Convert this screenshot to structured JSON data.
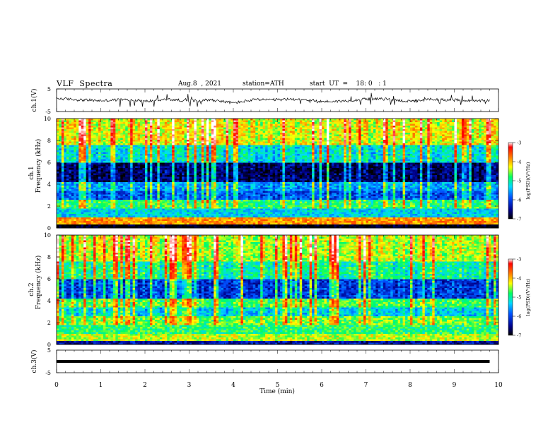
{
  "header": {
    "title": "VLF  Spectra",
    "date": "Aug.8  , 2021",
    "station": "station=ATH",
    "start": "start  UT  =    18: 0   : 1"
  },
  "chart_data": [
    {
      "type": "line",
      "panel": "ch1-waveform",
      "ylabel": "ch.1(V)",
      "ylim": [
        -5,
        5
      ],
      "yticks": [
        "5",
        "-5"
      ],
      "x": [
        0.0,
        0.5,
        1.0,
        1.5,
        2.0,
        2.5,
        3.0,
        3.5,
        4.0,
        4.5,
        5.0,
        5.5,
        6.0,
        6.5,
        7.0,
        7.5,
        8.0,
        8.5,
        9.0,
        9.5,
        9.8
      ],
      "values": [
        0.8,
        0.2,
        -0.2,
        0.3,
        -0.5,
        0.4,
        -0.3,
        0.2,
        -1.2,
        0.3,
        0.2,
        0.6,
        -0.6,
        -0.4,
        0.6,
        0.5,
        -0.6,
        0.4,
        0.1,
        -0.4,
        0.0
      ],
      "color": "#000000"
    },
    {
      "type": "heatmap",
      "panel": "ch1-spectrogram",
      "ylabel_top": "ch.1",
      "ylabel": "Frequency (kHz)",
      "ylim": [
        0,
        10
      ],
      "yticks": [
        "0",
        "2",
        "4",
        "6",
        "8",
        "10"
      ],
      "colorbar": {
        "label": "log(PSD)(V²/Hz)",
        "ticks": [
          "-3",
          "-4",
          "-5",
          "-6",
          "-7"
        ],
        "range": [
          -7,
          -3
        ]
      },
      "bands": [
        {
          "from_khz": 0.0,
          "to_khz": 0.3,
          "level": -7.0
        },
        {
          "from_khz": 0.3,
          "to_khz": 1.0,
          "level": -4.3
        },
        {
          "from_khz": 1.0,
          "to_khz": 1.8,
          "level": -5.6
        },
        {
          "from_khz": 1.8,
          "to_khz": 2.6,
          "level": -5.2
        },
        {
          "from_khz": 2.6,
          "to_khz": 3.4,
          "level": -6.1
        },
        {
          "from_khz": 3.4,
          "to_khz": 4.2,
          "level": -5.8
        },
        {
          "from_khz": 4.2,
          "to_khz": 6.0,
          "level": -6.7
        },
        {
          "from_khz": 6.0,
          "to_khz": 7.6,
          "level": -5.5
        },
        {
          "from_khz": 7.6,
          "to_khz": 10.0,
          "level": -4.7
        }
      ]
    },
    {
      "type": "heatmap",
      "panel": "ch2-spectrogram",
      "ylabel_top": "ch.2",
      "ylabel": "Frequency (kHz)",
      "ylim": [
        0,
        10
      ],
      "yticks": [
        "0",
        "2",
        "4",
        "6",
        "8",
        "10"
      ],
      "colorbar": {
        "label": "log(PSD)(V²/Hz)",
        "ticks": [
          "-3",
          "-4",
          "-5",
          "-6",
          "-7"
        ],
        "range": [
          -7,
          -3
        ]
      },
      "bands": [
        {
          "from_khz": 0.0,
          "to_khz": 0.3,
          "level": -6.5
        },
        {
          "from_khz": 0.3,
          "to_khz": 1.0,
          "level": -4.8
        },
        {
          "from_khz": 1.0,
          "to_khz": 1.8,
          "level": -5.2
        },
        {
          "from_khz": 1.8,
          "to_khz": 2.6,
          "level": -5.0
        },
        {
          "from_khz": 2.6,
          "to_khz": 3.4,
          "level": -5.6
        },
        {
          "from_khz": 3.4,
          "to_khz": 4.2,
          "level": -5.1
        },
        {
          "from_khz": 4.2,
          "to_khz": 6.0,
          "level": -6.2
        },
        {
          "from_khz": 6.0,
          "to_khz": 7.6,
          "level": -5.3
        },
        {
          "from_khz": 7.6,
          "to_khz": 10.0,
          "level": -4.8
        }
      ]
    },
    {
      "type": "line",
      "panel": "ch3-waveform",
      "ylabel": "ch.3(V)",
      "ylim": [
        -5,
        5
      ],
      "yticks": [
        "5",
        "-5"
      ],
      "x": [
        0.0,
        9.8
      ],
      "values": [
        0.0,
        0.0
      ],
      "color": "#000000"
    }
  ],
  "xaxis": {
    "label": "Time  (min)",
    "range": [
      0,
      10
    ],
    "ticks": [
      "0",
      "1",
      "2",
      "3",
      "4",
      "5",
      "6",
      "7",
      "8",
      "9",
      "10"
    ]
  }
}
